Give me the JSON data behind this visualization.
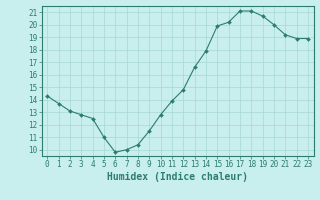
{
  "x": [
    0,
    1,
    2,
    3,
    4,
    5,
    6,
    7,
    8,
    9,
    10,
    11,
    12,
    13,
    14,
    15,
    16,
    17,
    18,
    19,
    20,
    21,
    22,
    23
  ],
  "y": [
    14.3,
    13.7,
    13.1,
    12.8,
    12.5,
    11.0,
    9.8,
    10.0,
    10.4,
    11.5,
    12.8,
    13.9,
    14.8,
    16.6,
    17.9,
    19.9,
    20.2,
    21.1,
    21.1,
    20.7,
    20.0,
    19.2,
    18.9,
    18.9
  ],
  "xlabel": "Humidex (Indice chaleur)",
  "ylim": [
    9.5,
    21.5
  ],
  "xlim": [
    -0.5,
    23.5
  ],
  "yticks": [
    10,
    11,
    12,
    13,
    14,
    15,
    16,
    17,
    18,
    19,
    20,
    21
  ],
  "xticks": [
    0,
    1,
    2,
    3,
    4,
    5,
    6,
    7,
    8,
    9,
    10,
    11,
    12,
    13,
    14,
    15,
    16,
    17,
    18,
    19,
    20,
    21,
    22,
    23
  ],
  "line_color": "#2d7d6e",
  "marker_color": "#2d7d6e",
  "bg_color": "#c8eeee",
  "grid_color": "#a8d8d0",
  "axis_color": "#2d7d6e",
  "label_color": "#2d7d6e",
  "xlabel_fontsize": 7,
  "tick_fontsize": 5.5
}
